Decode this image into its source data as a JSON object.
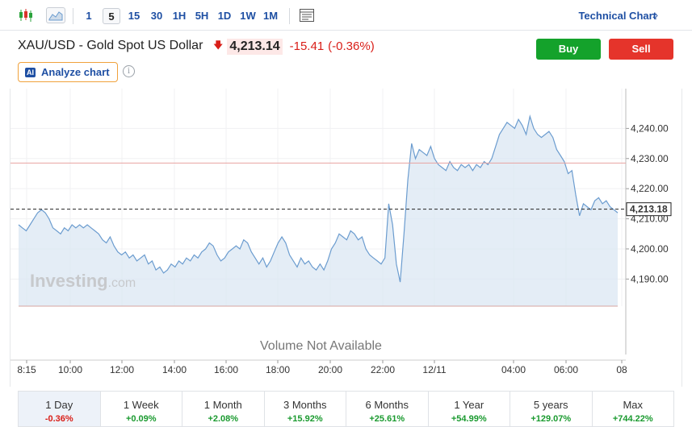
{
  "toolbar": {
    "intervals": [
      "1",
      "5",
      "15",
      "30",
      "1H",
      "5H",
      "1D",
      "1W",
      "1M"
    ],
    "active_interval": "5",
    "technical_chart": "Technical Chart",
    "technical_chevron": "»"
  },
  "instrument": {
    "title": "XAU/USD - Gold Spot US Dollar",
    "price": "4,213.14",
    "change": "-15.41",
    "change_pct": "(-0.36%)"
  },
  "actions": {
    "buy": "Buy",
    "sell": "Sell"
  },
  "analyze": {
    "badge": "AI",
    "label": "Analyze chart",
    "info": "i"
  },
  "watermark": {
    "brand": "Investing",
    "suffix": ".com"
  },
  "volume_text": "Volume Not Available",
  "chart_data": {
    "type": "area",
    "x_ticks": [
      "8:15",
      "10:00",
      "12:00",
      "14:00",
      "16:00",
      "18:00",
      "20:00",
      "22:00",
      "12/11",
      "04:00",
      "06:00",
      "08"
    ],
    "y_ticks": [
      "4,240.00",
      "4,230.00",
      "4,220.00",
      "4,210.00",
      "4,200.00",
      "4,190.00"
    ],
    "ylim": [
      4181,
      4250
    ],
    "current_price_label": "4,213.18",
    "current_price": 4213.18,
    "reference_line": 4228.5,
    "colors": {
      "line": "#6b9ccf",
      "fill": "#dbe7f3",
      "reference": "#e8a3a0",
      "current": "#222222"
    },
    "series": [
      {
        "values": [
          4208,
          4207,
          4206,
          4208,
          4210,
          4212,
          4213,
          4212,
          4210,
          4207,
          4206,
          4205,
          4207,
          4206,
          4208,
          4207,
          4208,
          4207,
          4208,
          4207,
          4206,
          4205,
          4203,
          4202,
          4204,
          4201,
          4199,
          4198,
          4199,
          4197,
          4198,
          4196,
          4197,
          4198,
          4195,
          4196,
          4193,
          4194,
          4192,
          4193,
          4195,
          4194,
          4196,
          4195,
          4197,
          4196,
          4198,
          4197,
          4199,
          4200,
          4202,
          4201,
          4198,
          4196,
          4197,
          4199,
          4200,
          4201,
          4200,
          4203,
          4202,
          4199,
          4197,
          4195,
          4197,
          4194,
          4196,
          4199,
          4202,
          4204,
          4202,
          4198,
          4196,
          4194,
          4197,
          4195,
          4196,
          4194,
          4193,
          4195,
          4193,
          4196,
          4200,
          4202,
          4205,
          4204,
          4203,
          4206,
          4205,
          4203,
          4204,
          4200,
          4198,
          4197,
          4196,
          4195,
          4197,
          4215,
          4208,
          4195,
          4189,
          4205,
          4223,
          4235,
          4230,
          4233,
          4232,
          4231,
          4234,
          4230,
          4228,
          4227,
          4226,
          4229,
          4227,
          4226,
          4228,
          4227,
          4228,
          4226,
          4228,
          4227,
          4229,
          4228,
          4230,
          4234,
          4238,
          4240,
          4242,
          4241,
          4240,
          4243,
          4241,
          4238,
          4244,
          4240,
          4238,
          4237,
          4238,
          4239,
          4237,
          4233,
          4231,
          4229,
          4225,
          4226,
          4218,
          4211,
          4215,
          4214,
          4213,
          4216,
          4217,
          4215,
          4216,
          4214,
          4213,
          4212
        ]
      }
    ]
  },
  "periods": [
    {
      "label": "1 Day",
      "change": "-0.36%",
      "dir": "neg"
    },
    {
      "label": "1 Week",
      "change": "+0.09%",
      "dir": "pos"
    },
    {
      "label": "1 Month",
      "change": "+2.08%",
      "dir": "pos"
    },
    {
      "label": "3 Months",
      "change": "+15.92%",
      "dir": "pos"
    },
    {
      "label": "6 Months",
      "change": "+25.61%",
      "dir": "pos"
    },
    {
      "label": "1 Year",
      "change": "+54.99%",
      "dir": "pos"
    },
    {
      "label": "5 years",
      "change": "+129.07%",
      "dir": "pos"
    },
    {
      "label": "Max",
      "change": "+744.22%",
      "dir": "pos"
    }
  ]
}
